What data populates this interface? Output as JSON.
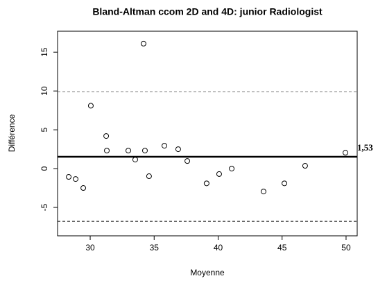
{
  "chart_data": {
    "type": "scatter",
    "title": "Bland-Altman ccom 2D and 4D: junior Radiologist",
    "x_label": "Moyenne",
    "y_label": "Différence",
    "x": [
      28.32,
      28.86,
      29.46,
      30.05,
      31.25,
      31.3,
      32.98,
      33.52,
      34.17,
      34.28,
      34.6,
      35.8,
      36.88,
      37.59,
      39.1,
      40.08,
      41.06,
      43.55,
      45.18,
      46.8,
      49.95
    ],
    "values": [
      -1.07,
      -1.34,
      -2.5,
      8.1,
      4.2,
      2.32,
      2.32,
      1.16,
      16.1,
      2.32,
      -0.98,
      2.95,
      2.5,
      0.98,
      -1.9,
      -0.7,
      0,
      -2.95,
      -1.9,
      0.36,
      2.05
    ],
    "mean_line": {
      "value": 1.53,
      "label": "1,53"
    },
    "limits": [
      9.9,
      -6.8
    ],
    "xlim": [
      27.45,
      50.87
    ],
    "xticks": [
      30,
      35,
      40,
      45,
      50
    ],
    "ylim": [
      -8.66,
      17.7
    ],
    "yticks": [
      -5,
      0,
      5,
      10,
      15
    ],
    "color": "#000000"
  }
}
